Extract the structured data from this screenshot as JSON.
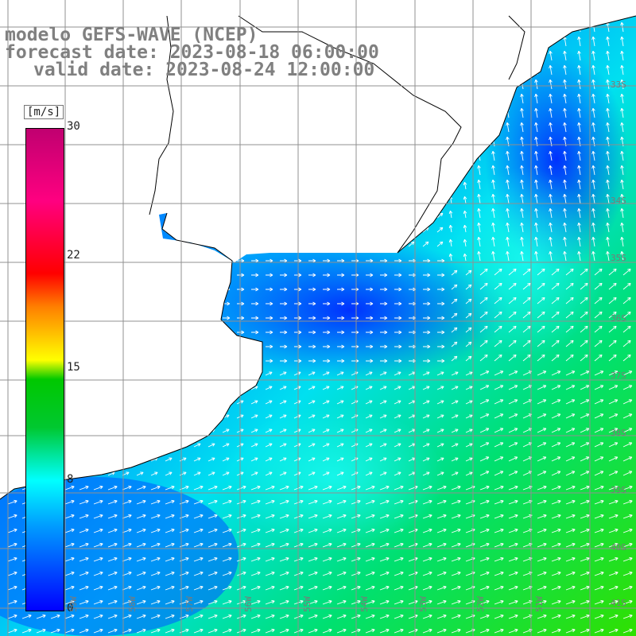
{
  "title": {
    "line1": "modelo GEFS-WAVE (NCEP)",
    "line2": "forecast date: 2023-08-18 06:00:00",
    "line3": "valid date: 2023-08-24 12:00:00"
  },
  "colorbar": {
    "unit": "[m/s]",
    "ticks": [
      "30",
      "22",
      "15",
      "8",
      "0"
    ],
    "tick_values": [
      30,
      22,
      15,
      8,
      0
    ],
    "min": 0,
    "max": 30
  },
  "lat_labels": [
    "33S",
    "34S",
    "35S",
    "36S",
    "37S",
    "38S",
    "39S",
    "40S",
    "41S"
  ],
  "lon_labels": [
    "59W",
    "58W",
    "57W",
    "56W",
    "55W",
    "54W",
    "53W",
    "52W",
    "51W"
  ],
  "colors": {
    "land": "#ffffff",
    "grid": "#909090",
    "coast": "#000000",
    "arrows": "#ffffff"
  }
}
